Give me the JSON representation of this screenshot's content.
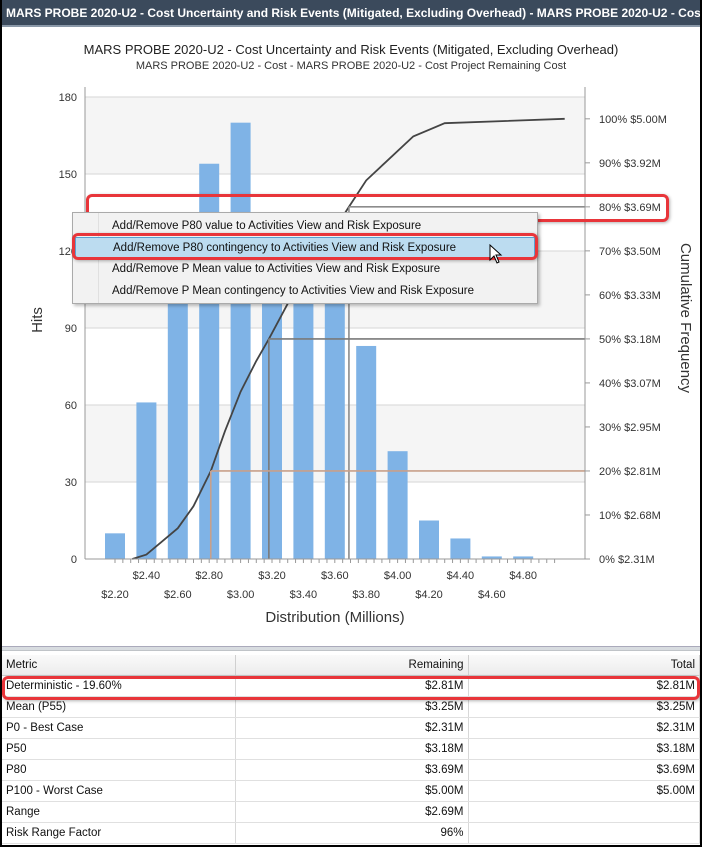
{
  "window": {
    "title": "MARS PROBE 2020-U2 - Cost Uncertainty and Risk Events (Mitigated, Excluding Overhead) - MARS PROBE 2020-U2 - Cost - MARS PROBE 2020-U2 - Cost Project Remaining Cost"
  },
  "chart": {
    "title": "MARS PROBE 2020-U2 - Cost Uncertainty and Risk Events (Mitigated, Excluding Overhead)",
    "subtitle": "MARS PROBE 2020-U2 - Cost - MARS PROBE 2020-U2 - Cost Project Remaining Cost",
    "ylabel": "Hits",
    "xlabel": "Distribution (Millions)",
    "y2label": "Cumulative Frequency"
  },
  "context_menu": {
    "items": [
      {
        "label": "Add/Remove P80 value to Activities View and Risk Exposure"
      },
      {
        "label": "Add/Remove P80 contingency to Activities View and Risk Exposure"
      },
      {
        "label": "Add/Remove P Mean value to Activities View and Risk Exposure"
      },
      {
        "label": "Add/Remove P Mean contingency to Activities View and Risk Exposure"
      }
    ],
    "highlighted_index": 1
  },
  "metrics_table": {
    "headers": [
      "Metric",
      "Remaining",
      "Total"
    ],
    "rows": [
      [
        "Deterministic - 19.60%",
        "$2.81M",
        "$2.81M"
      ],
      [
        "Mean (P55)",
        "$3.25M",
        "$3.25M"
      ],
      [
        "P0 - Best Case",
        "$2.31M",
        "$2.31M"
      ],
      [
        "P50",
        "$3.18M",
        "$3.18M"
      ],
      [
        "P80",
        "$3.69M",
        "$3.69M"
      ],
      [
        "P100 - Worst Case",
        "$5.00M",
        "$5.00M"
      ],
      [
        "Range",
        "$2.69M",
        ""
      ],
      [
        "Risk Range Factor",
        "96%",
        ""
      ]
    ]
  },
  "chart_data": {
    "type": "bar",
    "title": "MARS PROBE 2020-U2 - Cost Uncertainty and Risk Events (Mitigated, Excluding Overhead)",
    "subtitle": "MARS PROBE 2020-U2 - Cost - MARS PROBE 2020-U2 - Cost Project Remaining Cost",
    "xlabel": "Distribution (Millions)",
    "ylabel": "Hits",
    "y2label": "Cumulative Frequency",
    "ylim": [
      0,
      180
    ],
    "yticks": [
      "0",
      "30",
      "60",
      "90",
      "120",
      "150",
      "180"
    ],
    "xticks_upper": [
      "$2.40",
      "$2.80",
      "$3.20",
      "$3.60",
      "$4.00",
      "$4.40",
      "$4.80"
    ],
    "xticks_lower": [
      "$2.20",
      "$2.60",
      "$3.00",
      "$3.40",
      "$3.80",
      "$4.20",
      "$4.60"
    ],
    "y2ticks": [
      "0% $2.31M",
      "10% $2.68M",
      "20% $2.81M",
      "30% $2.95M",
      "40% $3.07M",
      "50% $3.18M",
      "60% $3.33M",
      "70% $3.50M",
      "80% $3.69M",
      "90% $3.92M",
      "100% $5.00M"
    ],
    "categories": [
      "$2.20",
      "$2.40",
      "$2.60",
      "$2.80",
      "$3.00",
      "$3.20",
      "$3.40",
      "$3.60",
      "$3.80",
      "$4.00",
      "$4.20",
      "$4.40",
      "$4.60",
      "$4.80"
    ],
    "series": [
      {
        "name": "Hits",
        "type": "bar",
        "values": [
          10,
          61,
          120,
          154,
          170,
          112,
          108,
          100,
          83,
          42,
          15,
          8,
          1,
          1
        ]
      },
      {
        "name": "Cumulative Frequency",
        "type": "line",
        "x": [
          2.31,
          2.4,
          2.5,
          2.6,
          2.7,
          2.81,
          2.9,
          3.0,
          3.1,
          3.18,
          3.3,
          3.4,
          3.5,
          3.6,
          3.69,
          3.8,
          3.92,
          4.1,
          4.3,
          5.0
        ],
        "values": [
          0,
          1,
          4,
          7,
          12,
          20,
          29,
          38,
          45,
          50,
          58,
          64,
          70,
          75,
          80,
          86,
          90,
          96,
          99,
          100
        ]
      }
    ],
    "reference_lines": [
      {
        "label": "P80",
        "value": "$3.69M",
        "percent": 80
      },
      {
        "label": "P50",
        "value": "$3.18M",
        "percent": 50
      },
      {
        "label": "Deterministic",
        "value": "$2.81M",
        "percent": 20
      }
    ],
    "grid": true,
    "legend": "none"
  }
}
